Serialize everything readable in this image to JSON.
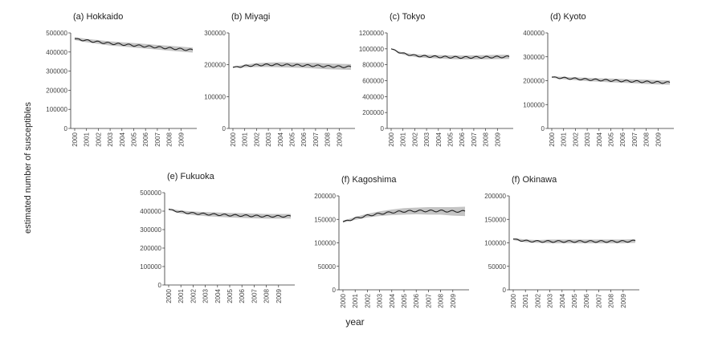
{
  "figure": {
    "ylabel": "estimated number of susceptibles",
    "xlabel": "year"
  },
  "chart_data": [
    {
      "type": "line",
      "title": "(a) Hokkaido",
      "ylim": [
        0,
        500000
      ],
      "yticks": [
        0,
        100000,
        200000,
        300000,
        400000,
        500000
      ],
      "xlim": [
        2000,
        2010
      ],
      "xticks": [
        2000,
        2001,
        2002,
        2003,
        2004,
        2005,
        2006,
        2007,
        2008,
        2009
      ],
      "series": [
        {
          "x": [
            2000,
            2001,
            2002,
            2003,
            2004,
            2005,
            2006,
            2007,
            2008,
            2009,
            2010
          ],
          "values": [
            470000,
            460000,
            452000,
            445000,
            440000,
            435000,
            430000,
            425000,
            420000,
            415000,
            410000
          ],
          "band": [
            8000,
            9000,
            10000,
            11000,
            11000,
            12000,
            12000,
            12000,
            13000,
            13000,
            13000
          ]
        }
      ]
    },
    {
      "type": "line",
      "title": "(b) Miyagi",
      "ylim": [
        0,
        300000
      ],
      "yticks": [
        0,
        100000,
        200000,
        300000
      ],
      "xlim": [
        2000,
        2010
      ],
      "xticks": [
        2000,
        2001,
        2002,
        2003,
        2004,
        2005,
        2006,
        2007,
        2008,
        2009
      ],
      "series": [
        {
          "x": [
            2000,
            2001,
            2002,
            2003,
            2004,
            2005,
            2006,
            2007,
            2008,
            2009,
            2010
          ],
          "values": [
            192000,
            196000,
            199000,
            200000,
            200000,
            199000,
            198000,
            197000,
            195000,
            194000,
            193000
          ],
          "band": [
            2000,
            4000,
            6000,
            7000,
            8000,
            8000,
            8000,
            9000,
            9000,
            9000,
            9000
          ]
        }
      ]
    },
    {
      "type": "line",
      "title": "(c) Tokyo",
      "ylim": [
        0,
        1200000
      ],
      "yticks": [
        0,
        200000,
        400000,
        600000,
        800000,
        1000000,
        1200000
      ],
      "xlim": [
        2000,
        2010
      ],
      "xticks": [
        2000,
        2001,
        2002,
        2003,
        2004,
        2005,
        2006,
        2007,
        2008,
        2009
      ],
      "series": [
        {
          "x": [
            2000,
            2001,
            2002,
            2003,
            2004,
            2005,
            2006,
            2007,
            2008,
            2009,
            2010
          ],
          "values": [
            1000000,
            940000,
            915000,
            905000,
            900000,
            895000,
            892000,
            893000,
            895000,
            898000,
            900000
          ],
          "band": [
            5000,
            12000,
            18000,
            20000,
            22000,
            24000,
            25000,
            26000,
            26000,
            27000,
            27000
          ]
        }
      ]
    },
    {
      "type": "line",
      "title": "(d) Kyoto",
      "ylim": [
        0,
        400000
      ],
      "yticks": [
        0,
        100000,
        200000,
        300000,
        400000
      ],
      "xlim": [
        2000,
        2010
      ],
      "xticks": [
        2000,
        2001,
        2002,
        2003,
        2004,
        2005,
        2006,
        2007,
        2008,
        2009
      ],
      "series": [
        {
          "x": [
            2000,
            2001,
            2002,
            2003,
            2004,
            2005,
            2006,
            2007,
            2008,
            2009,
            2010
          ],
          "values": [
            215000,
            211000,
            208000,
            205000,
            203000,
            201000,
            199000,
            197000,
            195000,
            193000,
            192000
          ],
          "band": [
            3000,
            5000,
            6000,
            7000,
            7000,
            8000,
            8000,
            8000,
            9000,
            9000,
            9000
          ]
        }
      ]
    },
    {
      "type": "line",
      "title": "(e) Fukuoka",
      "ylim": [
        0,
        500000
      ],
      "yticks": [
        0,
        100000,
        200000,
        300000,
        400000,
        500000
      ],
      "xlim": [
        2000,
        2010
      ],
      "xticks": [
        2000,
        2001,
        2002,
        2003,
        2004,
        2005,
        2006,
        2007,
        2008,
        2009
      ],
      "series": [
        {
          "x": [
            2000,
            2001,
            2002,
            2003,
            2004,
            2005,
            2006,
            2007,
            2008,
            2009,
            2010
          ],
          "values": [
            410000,
            395000,
            388000,
            384000,
            381000,
            378000,
            376000,
            374000,
            372000,
            372000,
            372000
          ],
          "band": [
            4000,
            8000,
            10000,
            11000,
            12000,
            12000,
            13000,
            13000,
            13000,
            13000,
            13000
          ]
        }
      ]
    },
    {
      "type": "line",
      "title": "(f) Kagoshima",
      "ylim": [
        0,
        200000
      ],
      "yticks": [
        0,
        50000,
        100000,
        150000,
        200000
      ],
      "xlim": [
        2000,
        2010
      ],
      "xticks": [
        2000,
        2001,
        2002,
        2003,
        2004,
        2005,
        2006,
        2007,
        2008,
        2009
      ],
      "series": [
        {
          "x": [
            2000,
            2001,
            2002,
            2003,
            2004,
            2005,
            2006,
            2007,
            2008,
            2009,
            2010
          ],
          "values": [
            145000,
            152000,
            158000,
            162000,
            165000,
            167000,
            168000,
            168000,
            168000,
            167000,
            167000
          ],
          "band": [
            2000,
            3000,
            4000,
            5000,
            6000,
            7000,
            7000,
            8000,
            8000,
            9000,
            10000
          ]
        }
      ]
    },
    {
      "type": "line",
      "title": "(f) Okinawa",
      "ylim": [
        0,
        200000
      ],
      "yticks": [
        0,
        50000,
        100000,
        150000,
        200000
      ],
      "xlim": [
        2000,
        2010
      ],
      "xticks": [
        2000,
        2001,
        2002,
        2003,
        2004,
        2005,
        2006,
        2007,
        2008,
        2009
      ],
      "series": [
        {
          "x": [
            2000,
            2001,
            2002,
            2003,
            2004,
            2005,
            2006,
            2007,
            2008,
            2009,
            2010
          ],
          "values": [
            108000,
            104000,
            103000,
            103000,
            103000,
            103000,
            103000,
            103000,
            103000,
            103000,
            104000
          ],
          "band": [
            2000,
            3000,
            3000,
            4000,
            4000,
            4000,
            4000,
            4000,
            4000,
            4000,
            4000
          ]
        }
      ]
    }
  ]
}
